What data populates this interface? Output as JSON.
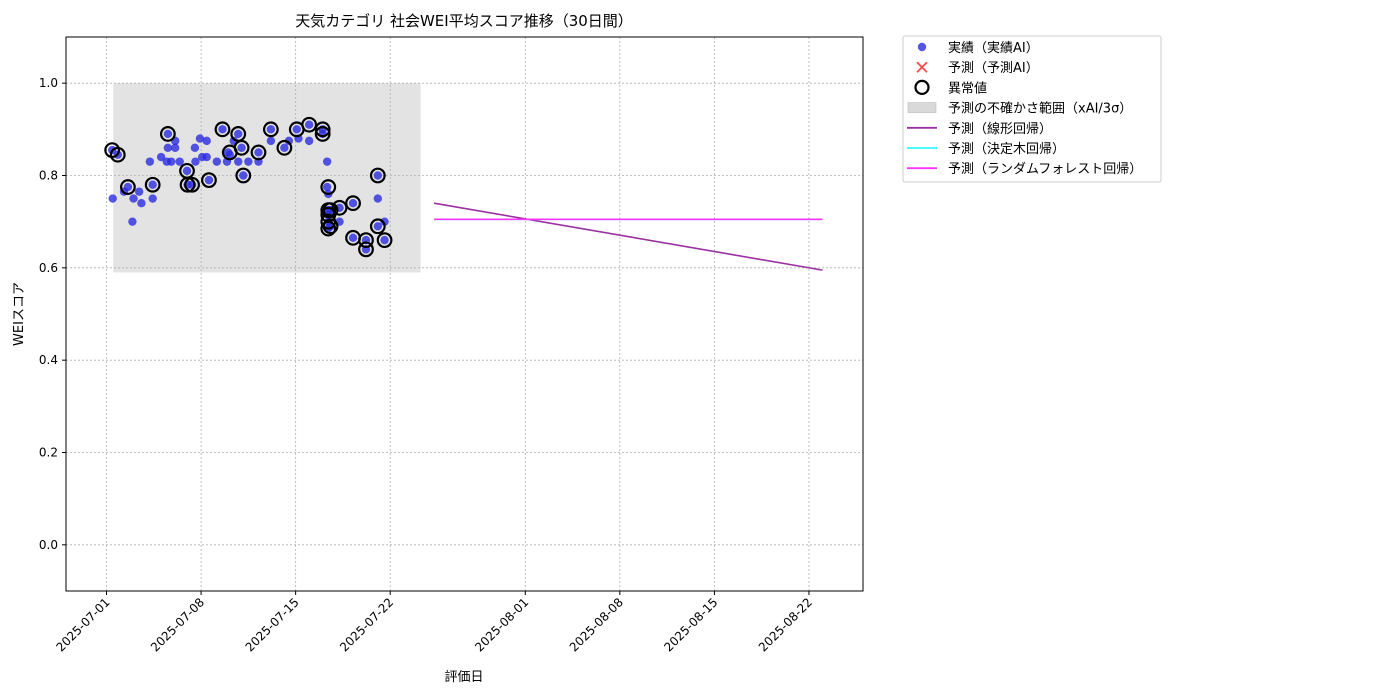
{
  "chart_data": {
    "type": "scatter",
    "title": "天気カテゴリ 社会WEI平均スコア推移（30日間）",
    "xlabel": "評価日",
    "ylabel": "WEIスコア",
    "x_axis_type": "date",
    "xlim": [
      "2025-06-28",
      "2025-08-26"
    ],
    "ylim": [
      -0.1,
      1.1
    ],
    "y_ticks": [
      0.0,
      0.2,
      0.4,
      0.6,
      0.8,
      1.0
    ],
    "y_tick_labels": [
      "0.0",
      "0.2",
      "0.4",
      "0.6",
      "0.8",
      "1.0"
    ],
    "x_ticks": [
      "2025-07-01",
      "2025-07-08",
      "2025-07-15",
      "2025-07-22",
      "2025-08-01",
      "2025-08-08",
      "2025-08-15",
      "2025-08-22"
    ],
    "x_tick_labels": [
      "2025-07-01",
      "2025-07-08",
      "2025-07-15",
      "2025-07-22",
      "2025-08-01",
      "2025-08-08",
      "2025-08-15",
      "2025-08-22"
    ],
    "grid": true,
    "legend_placement": "outside-top-right",
    "legend": [
      {
        "label": "実績（実績AI）",
        "marker": "dot",
        "color": "#2a2ae0"
      },
      {
        "label": "予測（予測AI）",
        "marker": "x",
        "color": "#ff4d4d"
      },
      {
        "label": "異常値",
        "marker": "ring",
        "color": "#000000"
      },
      {
        "label": "予測の不確かさ範囲（xAI/3σ）",
        "marker": "patch",
        "color": "#d9d9d9"
      },
      {
        "label": "予測（線形回帰）",
        "marker": "line",
        "color": "#9b30a0"
      },
      {
        "label": "予測（決定木回帰）",
        "marker": "line",
        "color": "#33ffff"
      },
      {
        "label": "予測（ランダムフォレスト回帰）",
        "marker": "line",
        "color": "#ff33ff"
      }
    ],
    "uncertainty_band": {
      "x_start": "2025-07-01 12:00",
      "x_end": "2025-07-24 06:00",
      "y_low": 0.59,
      "y_high": 1.0
    },
    "series": [
      {
        "name": "実績（実績AI）",
        "kind": "scatter",
        "color": "#2a2ae0",
        "points": [
          [
            "2025-07-01 10:00",
            0.855
          ],
          [
            "2025-07-01 11:00",
            0.75
          ],
          [
            "2025-07-01 20:00",
            0.845
          ],
          [
            "2025-07-02 07:00",
            0.765
          ],
          [
            "2025-07-02 14:00",
            0.775
          ],
          [
            "2025-07-02 22:00",
            0.7
          ],
          [
            "2025-07-03 00:00",
            0.75
          ],
          [
            "2025-07-03 10:00",
            0.765
          ],
          [
            "2025-07-03 14:00",
            0.74
          ],
          [
            "2025-07-04 05:00",
            0.83
          ],
          [
            "2025-07-04 10:00",
            0.78
          ],
          [
            "2025-07-04 10:00",
            0.75
          ],
          [
            "2025-07-05 01:00",
            0.84
          ],
          [
            "2025-07-05 11:00",
            0.83
          ],
          [
            "2025-07-05 13:00",
            0.89
          ],
          [
            "2025-07-05 13:00",
            0.86
          ],
          [
            "2025-07-05 19:00",
            0.83
          ],
          [
            "2025-07-06 02:00",
            0.875
          ],
          [
            "2025-07-06 02:00",
            0.86
          ],
          [
            "2025-07-06 10:00",
            0.83
          ],
          [
            "2025-07-06 23:00",
            0.81
          ],
          [
            "2025-07-07 00:00",
            0.78
          ],
          [
            "2025-07-07 08:00",
            0.78
          ],
          [
            "2025-07-07 13:00",
            0.86
          ],
          [
            "2025-07-07 14:00",
            0.83
          ],
          [
            "2025-07-07 22:00",
            0.88
          ],
          [
            "2025-07-08 02:00",
            0.84
          ],
          [
            "2025-07-08 10:00",
            0.84
          ],
          [
            "2025-07-08 10:00",
            0.875
          ],
          [
            "2025-07-08 14:00",
            0.79
          ],
          [
            "2025-07-09 04:00",
            0.83
          ],
          [
            "2025-07-09 14:00",
            0.9
          ],
          [
            "2025-07-09 22:00",
            0.83
          ],
          [
            "2025-07-10 00:00",
            0.85
          ],
          [
            "2025-07-10 03:00",
            0.845
          ],
          [
            "2025-07-10 10:00",
            0.875
          ],
          [
            "2025-07-10 18:00",
            0.89
          ],
          [
            "2025-07-10 18:00",
            0.83
          ],
          [
            "2025-07-11 00:00",
            0.86
          ],
          [
            "2025-07-11 03:00",
            0.8
          ],
          [
            "2025-07-11 12:00",
            0.83
          ],
          [
            "2025-07-12 06:00",
            0.85
          ],
          [
            "2025-07-12 06:00",
            0.83
          ],
          [
            "2025-07-13 04:00",
            0.9
          ],
          [
            "2025-07-13 04:00",
            0.875
          ],
          [
            "2025-07-14 04:00",
            0.86
          ],
          [
            "2025-07-14 12:00",
            0.875
          ],
          [
            "2025-07-15 02:00",
            0.9
          ],
          [
            "2025-07-15 05:00",
            0.88
          ],
          [
            "2025-07-16 00:00",
            0.91
          ],
          [
            "2025-07-16 00:00",
            0.875
          ],
          [
            "2025-07-17 00:00",
            0.9
          ],
          [
            "2025-07-17 00:00",
            0.89
          ],
          [
            "2025-07-17 08:00",
            0.83
          ],
          [
            "2025-07-17 08:00",
            0.775
          ],
          [
            "2025-07-17 10:00",
            0.76
          ],
          [
            "2025-07-17 10:00",
            0.725
          ],
          [
            "2025-07-17 10:00",
            0.715
          ],
          [
            "2025-07-17 10:00",
            0.7
          ],
          [
            "2025-07-17 10:00",
            0.685
          ],
          [
            "2025-07-17 14:00",
            0.725
          ],
          [
            "2025-07-17 14:00",
            0.69
          ],
          [
            "2025-07-18 06:00",
            0.73
          ],
          [
            "2025-07-18 06:00",
            0.7
          ],
          [
            "2025-07-19 06:00",
            0.74
          ],
          [
            "2025-07-19 06:00",
            0.665
          ],
          [
            "2025-07-20 05:00",
            0.66
          ],
          [
            "2025-07-20 05:00",
            0.64
          ],
          [
            "2025-07-21 02:00",
            0.8
          ],
          [
            "2025-07-21 02:00",
            0.75
          ],
          [
            "2025-07-21 02:00",
            0.69
          ],
          [
            "2025-07-21 14:00",
            0.66
          ],
          [
            "2025-07-21 14:00",
            0.7
          ]
        ]
      },
      {
        "name": "異常値",
        "kind": "anomaly-rings",
        "color": "#000000",
        "points": [
          [
            "2025-07-01 10:00",
            0.855
          ],
          [
            "2025-07-01 20:00",
            0.845
          ],
          [
            "2025-07-02 14:00",
            0.775
          ],
          [
            "2025-07-04 10:00",
            0.78
          ],
          [
            "2025-07-05 13:00",
            0.89
          ],
          [
            "2025-07-06 23:00",
            0.81
          ],
          [
            "2025-07-07 00:00",
            0.78
          ],
          [
            "2025-07-07 08:00",
            0.78
          ],
          [
            "2025-07-08 14:00",
            0.79
          ],
          [
            "2025-07-09 14:00",
            0.9
          ],
          [
            "2025-07-10 03:00",
            0.85
          ],
          [
            "2025-07-10 18:00",
            0.89
          ],
          [
            "2025-07-11 00:00",
            0.86
          ],
          [
            "2025-07-11 03:00",
            0.8
          ],
          [
            "2025-07-12 06:00",
            0.85
          ],
          [
            "2025-07-13 04:00",
            0.9
          ],
          [
            "2025-07-14 04:00",
            0.86
          ],
          [
            "2025-07-15 02:00",
            0.9
          ],
          [
            "2025-07-16 00:00",
            0.91
          ],
          [
            "2025-07-17 00:00",
            0.9
          ],
          [
            "2025-07-17 00:00",
            0.89
          ],
          [
            "2025-07-17 10:00",
            0.775
          ],
          [
            "2025-07-17 10:00",
            0.725
          ],
          [
            "2025-07-17 10:00",
            0.715
          ],
          [
            "2025-07-17 10:00",
            0.7
          ],
          [
            "2025-07-17 10:00",
            0.685
          ],
          [
            "2025-07-17 14:00",
            0.725
          ],
          [
            "2025-07-17 14:00",
            0.69
          ],
          [
            "2025-07-18 06:00",
            0.73
          ],
          [
            "2025-07-19 06:00",
            0.74
          ],
          [
            "2025-07-19 06:00",
            0.665
          ],
          [
            "2025-07-20 05:00",
            0.66
          ],
          [
            "2025-07-20 05:00",
            0.64
          ],
          [
            "2025-07-21 02:00",
            0.8
          ],
          [
            "2025-07-21 02:00",
            0.69
          ],
          [
            "2025-07-21 14:00",
            0.66
          ]
        ]
      },
      {
        "name": "予測（線形回帰）",
        "kind": "line",
        "color": "#9b30a0",
        "points": [
          [
            "2025-07-25 06:00",
            0.74
          ],
          [
            "2025-08-23 00:00",
            0.595
          ]
        ]
      },
      {
        "name": "予測（決定木回帰）",
        "kind": "line",
        "color": "#33ffff",
        "points": [
          [
            "2025-07-25 06:00",
            0.705
          ],
          [
            "2025-08-23 00:00",
            0.705
          ]
        ]
      },
      {
        "name": "予測（ランダムフォレスト回帰）",
        "kind": "line",
        "color": "#ff33ff",
        "points": [
          [
            "2025-07-25 06:00",
            0.705
          ],
          [
            "2025-08-23 00:00",
            0.705
          ]
        ]
      }
    ]
  }
}
